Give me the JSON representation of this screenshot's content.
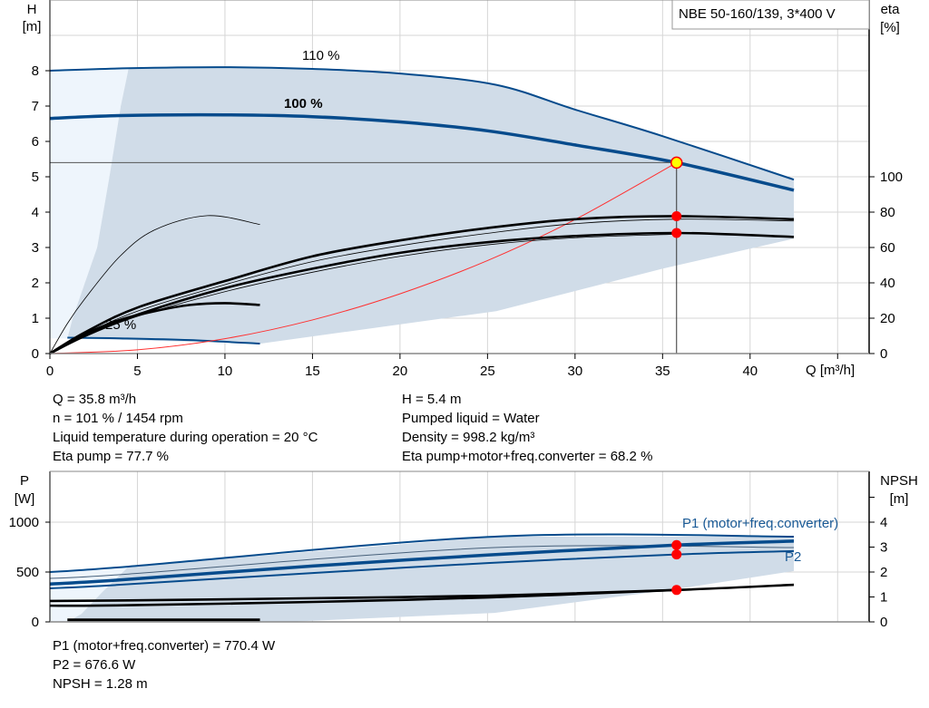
{
  "colors": {
    "curve": "#064b8c",
    "shade": "#d0dce8",
    "light_shade": "#eef5fc",
    "grid": "#d6d6d6",
    "operating_point": "#ffff00",
    "point": "#ff0000",
    "system_curve": "#ff3030"
  },
  "title_box": "NBE 50-160/139, 3*400 V",
  "chart_data": [
    {
      "type": "line",
      "xlabel": "Q [m³/h]",
      "xlim": [
        0,
        46.8
      ],
      "xticks": [
        0,
        5,
        10,
        15,
        20,
        25,
        30,
        35,
        40
      ],
      "y_left": {
        "label": "H",
        "unit": "[m]",
        "ylim": [
          0,
          10
        ],
        "ticks": [
          0,
          1,
          2,
          3,
          4,
          5,
          6,
          7,
          8
        ]
      },
      "y_right": {
        "label": "eta",
        "unit": "[%]",
        "ylim": [
          0,
          100
        ],
        "ticks": [
          0,
          20,
          40,
          60,
          80,
          100
        ]
      },
      "grid": true,
      "operating_point": {
        "Q": 35.8,
        "H": 5.4
      },
      "series": [
        {
          "name": "110 %",
          "axis": "H",
          "style": "blue",
          "x": [
            0,
            4.5,
            10,
            15,
            20,
            25.5,
            30,
            35,
            42.5
          ],
          "y": [
            8.0,
            8.07,
            8.1,
            8.05,
            7.92,
            7.6,
            6.9,
            6.15,
            4.92
          ]
        },
        {
          "name": "100 %",
          "axis": "H",
          "style": "blue-thick",
          "x": [
            0,
            4,
            10,
            15,
            20,
            25,
            30,
            35.8,
            42.5
          ],
          "y": [
            6.65,
            6.73,
            6.75,
            6.7,
            6.55,
            6.3,
            5.9,
            5.4,
            4.62
          ]
        },
        {
          "name": "25 %",
          "axis": "H",
          "style": "blue",
          "x": [
            1,
            4,
            8,
            12
          ],
          "y": [
            0.45,
            0.43,
            0.38,
            0.28
          ]
        },
        {
          "axis": "H",
          "style": "red-thin",
          "x": [
            0,
            5,
            10,
            15,
            20,
            25,
            30,
            35.8
          ],
          "y": [
            0,
            0.105,
            0.42,
            0.95,
            1.69,
            2.63,
            3.79,
            5.4
          ]
        },
        {
          "axis": "eta",
          "style": "black-thick",
          "x": [
            0,
            2,
            5,
            10,
            15,
            20,
            25,
            30,
            35.8,
            42.5
          ],
          "y": [
            0,
            12,
            26,
            41,
            55,
            64,
            71,
            76,
            77.7,
            76
          ]
        },
        {
          "axis": "eta",
          "style": "black-thin",
          "x": [
            0,
            2,
            5,
            10,
            15,
            20,
            25,
            30,
            35.8,
            42.5
          ],
          "y": [
            0,
            11,
            24,
            39,
            52,
            61,
            68,
            73.5,
            76,
            75
          ]
        },
        {
          "axis": "eta",
          "style": "black-thick",
          "x": [
            0,
            2,
            5,
            10,
            15,
            20,
            25,
            30,
            35.8,
            42.5
          ],
          "y": [
            0,
            10,
            22,
            37,
            48,
            57,
            63,
            66.5,
            68.2,
            66
          ]
        },
        {
          "axis": "eta",
          "style": "black-thin",
          "x": [
            0,
            2,
            5,
            10,
            15,
            20,
            25,
            30,
            35.8
          ],
          "y": [
            0,
            9.5,
            21,
            35,
            46,
            55,
            61.5,
            65.5,
            67.5
          ]
        },
        {
          "axis": "eta",
          "style": "black-thin",
          "x": [
            0,
            1,
            2,
            4,
            6,
            9,
            12
          ],
          "y": [
            0,
            17,
            31,
            55,
            70,
            78,
            73
          ]
        },
        {
          "axis": "eta",
          "style": "black-thick",
          "x": [
            0,
            2,
            4,
            6,
            8,
            10,
            12
          ],
          "y": [
            0,
            11,
            19,
            24,
            27.5,
            28.5,
            27.5
          ]
        }
      ],
      "points": [
        {
          "Q": 35.8,
          "eta": 77.7
        },
        {
          "Q": 35.8,
          "eta": 68.2
        }
      ]
    },
    {
      "type": "line",
      "xlim": [
        0,
        46.8
      ],
      "y_left": {
        "label": "P",
        "unit": "[W]",
        "ylim": [
          0,
          1500
        ],
        "ticks": [
          0,
          500,
          1000
        ]
      },
      "y_right": {
        "label": "NPSH",
        "unit": "[m]",
        "ylim": [
          0,
          6
        ],
        "ticks": [
          0,
          1,
          2,
          3,
          4,
          5
        ],
        "tick_labels": [
          "0",
          "1",
          "2",
          "3",
          "4",
          ""
        ]
      },
      "grid": true,
      "series": [
        {
          "axis": "P",
          "style": "blue",
          "x": [
            0,
            4.5,
            25.4,
            42.5
          ],
          "y": [
            500,
            555,
            855,
            855
          ]
        },
        {
          "axis": "P",
          "style": "blue-thin",
          "x": [
            0,
            4.5,
            25.4,
            42.5
          ],
          "y": [
            436,
            480,
            745,
            745
          ]
        },
        {
          "name": "P1 (motor+freq.converter)",
          "axis": "P",
          "style": "blue-thick",
          "x": [
            0,
            3.8,
            15,
            25,
            35.8,
            42.5
          ],
          "y": [
            380,
            418,
            560,
            670,
            770.4,
            810
          ]
        },
        {
          "name": "P2",
          "axis": "P",
          "style": "blue",
          "x": [
            0,
            3.8,
            15,
            25,
            35.8,
            42.5
          ],
          "y": [
            336,
            370,
            490,
            590,
            676.6,
            710
          ]
        },
        {
          "axis": "NPSH",
          "style": "black-thick",
          "x": [
            0,
            4.5,
            15,
            25,
            35.8,
            42.5
          ],
          "y": [
            0.84,
            0.86,
            0.95,
            1.05,
            1.28,
            1.49
          ]
        },
        {
          "axis": "NPSH",
          "style": "black-thick",
          "x": [
            0,
            3.8,
            15,
            25,
            35.8
          ],
          "y": [
            0.65,
            0.66,
            0.8,
            0.98,
            1.28
          ]
        },
        {
          "axis": "P",
          "style": "blue-black",
          "x": [
            1,
            12
          ],
          "y": [
            20,
            20
          ]
        }
      ],
      "points": [
        {
          "Q": 35.8,
          "P": 770.4
        },
        {
          "Q": 35.8,
          "P": 676.6
        },
        {
          "Q": 35.8,
          "NPSH": 1.28
        }
      ]
    }
  ],
  "info_top": {
    "left": [
      "Q = 35.8 m³/h",
      "n = 101 % / 1454 rpm",
      "Liquid temperature during operation = 20 °C",
      "Eta pump = 77.7 %"
    ],
    "right": [
      "H = 5.4 m",
      "Pumped liquid = Water",
      "Density = 998.2 kg/m³",
      "Eta pump+motor+freq.converter = 68.2 %"
    ]
  },
  "info_bottom": [
    "P1 (motor+freq.converter) = 770.4 W",
    "P2 = 676.6 W",
    "NPSH = 1.28 m"
  ]
}
